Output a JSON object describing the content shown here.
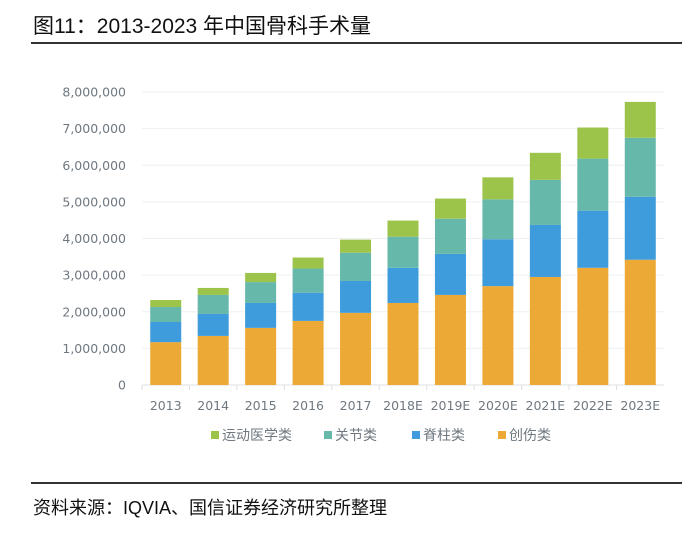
{
  "figure": {
    "title": "图11：2013-2023 年中国骨科手术量",
    "source": "资料来源：IQVIA、国信证券经济研究所整理"
  },
  "chart_data": {
    "type": "bar",
    "stacked": true,
    "title": "2013-2023 年中国骨科手术量",
    "xlabel": "",
    "ylabel": "",
    "categories": [
      "2013",
      "2014",
      "2015",
      "2016",
      "2017",
      "2018E",
      "2019E",
      "2020E",
      "2021E",
      "2022E",
      "2023E"
    ],
    "series": [
      {
        "name": "创伤类",
        "color": "#EDA936",
        "values": [
          1170000,
          1340000,
          1560000,
          1750000,
          1970000,
          2240000,
          2460000,
          2700000,
          2950000,
          3200000,
          3420000
        ]
      },
      {
        "name": "脊柱类",
        "color": "#3E9BDC",
        "values": [
          550000,
          600000,
          680000,
          770000,
          870000,
          960000,
          1120000,
          1280000,
          1420000,
          1560000,
          1720000
        ]
      },
      {
        "name": "关节类",
        "color": "#66B8AA",
        "values": [
          410000,
          520000,
          570000,
          660000,
          770000,
          850000,
          960000,
          1090000,
          1230000,
          1420000,
          1610000
        ]
      },
      {
        "name": "运动医学类",
        "color": "#9DC44A",
        "values": [
          190000,
          190000,
          250000,
          300000,
          360000,
          440000,
          550000,
          600000,
          740000,
          850000,
          980000
        ]
      }
    ],
    "ylim": [
      0,
      8000000
    ],
    "yticks": [
      0,
      1000000,
      2000000,
      3000000,
      4000000,
      5000000,
      6000000,
      7000000,
      8000000
    ],
    "ytick_labels": [
      "0",
      "1,000,000",
      "2,000,000",
      "3,000,000",
      "4,000,000",
      "5,000,000",
      "6,000,000",
      "7,000,000",
      "8,000,000"
    ],
    "grid": true,
    "legend": {
      "position": "bottom",
      "order": [
        "运动医学类",
        "关节类",
        "脊柱类",
        "创伤类"
      ]
    }
  }
}
